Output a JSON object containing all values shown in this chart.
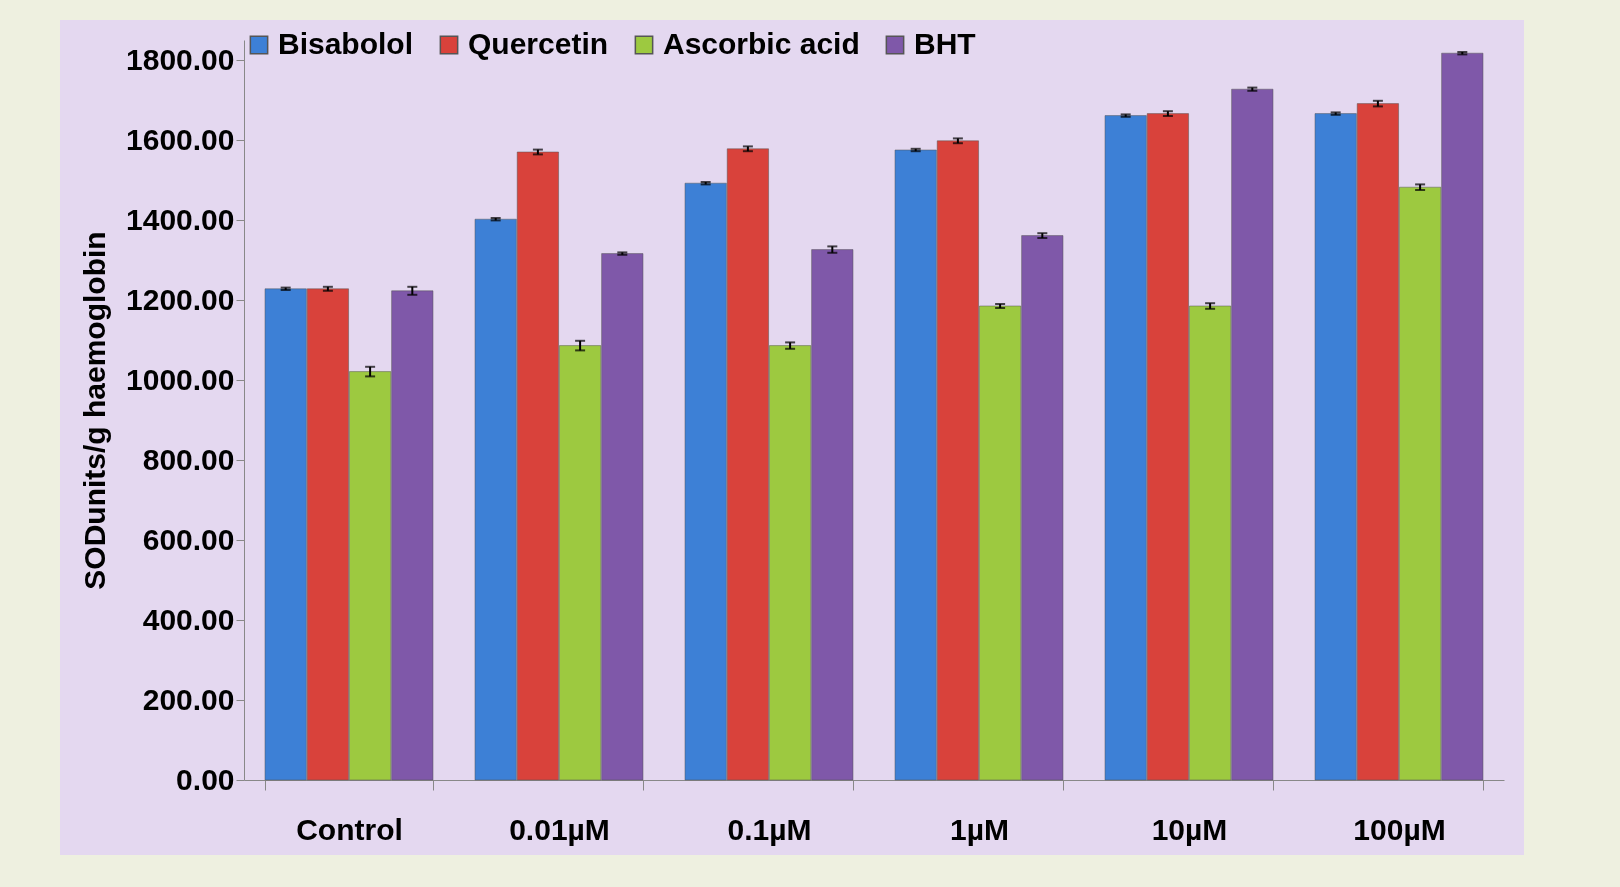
{
  "chart_data": {
    "type": "bar",
    "ylabel": "SODunits/g haemoglobin",
    "categories": [
      "Control",
      "0.01µM",
      "0.1µM",
      "1µM",
      "10µM",
      "100µM"
    ],
    "series": [
      {
        "name": "Bisabolol",
        "color": "#3d80d6",
        "values": [
          1228,
          1402,
          1492,
          1575,
          1661,
          1666
        ],
        "errors": [
          3,
          3,
          3,
          3,
          3,
          3
        ]
      },
      {
        "name": "Quercetin",
        "color": "#d9423b",
        "values": [
          1228,
          1570,
          1578,
          1598,
          1666,
          1691
        ],
        "errors": [
          5,
          6,
          6,
          6,
          6,
          7
        ]
      },
      {
        "name": "Ascorbic acid",
        "color": "#9dc940",
        "values": [
          1021,
          1086,
          1086,
          1185,
          1185,
          1482
        ],
        "errors": [
          12,
          12,
          8,
          5,
          7,
          7
        ]
      },
      {
        "name": "BHT",
        "color": "#7f58a9",
        "values": [
          1223,
          1316,
          1326,
          1361,
          1727,
          1817
        ],
        "errors": [
          10,
          3,
          8,
          6,
          4,
          3
        ]
      }
    ],
    "ylim": [
      0,
      1850
    ],
    "yticks": [
      {
        "value": 0,
        "label": "0.00"
      },
      {
        "value": 200,
        "label": "200.00"
      },
      {
        "value": 400,
        "label": "400.00"
      },
      {
        "value": 600,
        "label": "600.00"
      },
      {
        "value": 800,
        "label": "800.00"
      },
      {
        "value": 1000,
        "label": "1000.00"
      },
      {
        "value": 1200,
        "label": "1200.00"
      },
      {
        "value": 1400,
        "label": "1400.00"
      },
      {
        "value": 1600,
        "label": "1600.00"
      },
      {
        "value": 1800,
        "label": "1800.00"
      }
    ],
    "legend": "top",
    "grid": false
  }
}
